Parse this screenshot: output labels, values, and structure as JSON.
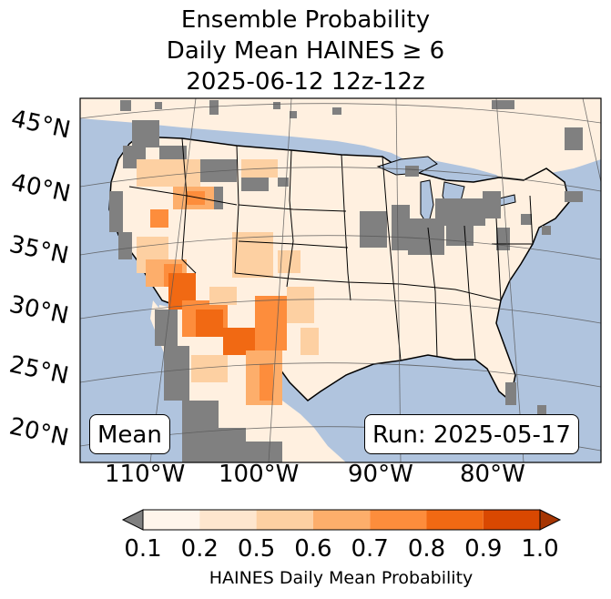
{
  "title": {
    "line1": "Ensemble Probability",
    "line2": "Daily Mean HAINES ≥ 6",
    "line3": "2025-06-12 12z-12z"
  },
  "lat_labels": [
    "45°N",
    "40°N",
    "35°N",
    "30°N",
    "25°N",
    "20°N"
  ],
  "lon_labels": [
    "110°W",
    "100°W",
    "90°W",
    "80°W"
  ],
  "stat_label": "Mean",
  "run_label": "Run: 2025-05-17",
  "colorbar": {
    "label": "HAINES Daily Mean Probability",
    "ticks": [
      "0.1",
      "0.2",
      "0.5",
      "0.6",
      "0.7",
      "0.8",
      "0.9",
      "1.0"
    ],
    "under_color": "#808080",
    "colors": [
      "#fff5eb",
      "#fee6ce",
      "#fdd0a2",
      "#fdae6b",
      "#fd8d3c",
      "#f16913",
      "#d94801"
    ],
    "over_color": "#a63603"
  },
  "colors": {
    "ocean": "#b0c4de",
    "land": "#fff0e0",
    "missing": "#808080",
    "lakes": "#b0c4de"
  }
}
